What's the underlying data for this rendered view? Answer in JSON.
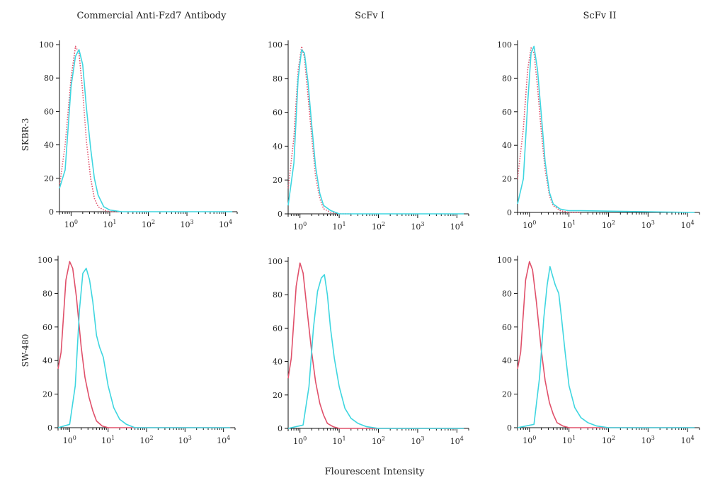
{
  "figure": {
    "column_titles": [
      "Commercial Anti-Fzd7 Antibody",
      "ScFv I",
      "ScFv II"
    ],
    "row_labels": [
      "SKBR-3",
      "SW-480"
    ],
    "xlabel": "Flourescent Intensity",
    "colors": {
      "control": "#e0506a",
      "sample": "#3fd6e0",
      "axis": "#111111"
    }
  },
  "chart_data": [
    {
      "type": "line",
      "row": "SKBR-3",
      "column": "Commercial Anti-Fzd7 Antibody",
      "x_scale": "log",
      "xlim": [
        0.5,
        20000
      ],
      "ylim": [
        0,
        100
      ],
      "x_ticks": [
        "10^0",
        "10^1",
        "10^2",
        "10^3",
        "10^4"
      ],
      "y_ticks": [
        0,
        20,
        40,
        60,
        80,
        100
      ],
      "series": [
        {
          "style": "dotted",
          "color": "#e0506a",
          "x": [
            0.5,
            0.7,
            1.0,
            1.3,
            1.6,
            2.0,
            2.5,
            3.2,
            4.0,
            5.0,
            7.0,
            10.0,
            20.0
          ],
          "y": [
            15,
            40,
            80,
            99,
            95,
            72,
            42,
            20,
            8,
            3,
            1,
            0,
            0
          ]
        },
        {
          "style": "solid",
          "color": "#3fd6e0",
          "x": [
            0.5,
            0.7,
            1.0,
            1.3,
            1.6,
            2.0,
            2.5,
            3.2,
            4.0,
            5.0,
            7.0,
            10.0,
            20.0,
            15000
          ],
          "y": [
            14,
            25,
            75,
            93,
            97,
            88,
            62,
            38,
            20,
            10,
            3,
            1,
            0,
            0
          ]
        }
      ]
    },
    {
      "type": "line",
      "row": "SKBR-3",
      "column": "ScFv I",
      "x_scale": "log",
      "xlim": [
        0.5,
        20000
      ],
      "ylim": [
        0,
        100
      ],
      "x_ticks": [
        "10^0",
        "10^1",
        "10^2",
        "10^3",
        "10^4"
      ],
      "y_ticks": [
        0,
        20,
        40,
        60,
        80,
        100
      ],
      "series": [
        {
          "style": "dotted",
          "color": "#e0506a",
          "x": [
            0.5,
            0.7,
            0.9,
            1.1,
            1.3,
            1.6,
            2.0,
            2.5,
            3.2,
            4.0,
            6.0,
            10.0,
            20.0
          ],
          "y": [
            15,
            45,
            85,
            99,
            92,
            70,
            45,
            22,
            9,
            3,
            1,
            0,
            0
          ]
        },
        {
          "style": "solid",
          "color": "#3fd6e0",
          "x": [
            0.5,
            0.7,
            0.9,
            1.1,
            1.3,
            1.6,
            2.0,
            2.5,
            3.2,
            4.0,
            6.0,
            10.0,
            20.0,
            15000
          ],
          "y": [
            5,
            30,
            80,
            97,
            95,
            78,
            52,
            28,
            12,
            5,
            2,
            0,
            0,
            0
          ]
        }
      ]
    },
    {
      "type": "line",
      "row": "SKBR-3",
      "column": "ScFv II",
      "x_scale": "log",
      "xlim": [
        0.5,
        20000
      ],
      "ylim": [
        0,
        100
      ],
      "x_ticks": [
        "10^0",
        "10^1",
        "10^2",
        "10^3",
        "10^4"
      ],
      "y_ticks": [
        0,
        20,
        40,
        60,
        80,
        100
      ],
      "series": [
        {
          "style": "dotted",
          "color": "#e0506a",
          "x": [
            0.5,
            0.7,
            0.9,
            1.1,
            1.3,
            1.6,
            2.0,
            2.5,
            3.2,
            4.0,
            6.0,
            10.0,
            20.0
          ],
          "y": [
            20,
            50,
            85,
            98,
            95,
            75,
            48,
            25,
            10,
            4,
            1,
            0,
            0
          ]
        },
        {
          "style": "solid",
          "color": "#3fd6e0",
          "x": [
            0.5,
            0.7,
            0.9,
            1.1,
            1.3,
            1.6,
            2.0,
            2.5,
            3.2,
            4.0,
            6.0,
            10.0,
            20.0,
            15000
          ],
          "y": [
            5,
            20,
            65,
            95,
            99,
            85,
            58,
            30,
            12,
            5,
            2,
            1,
            1,
            0
          ]
        }
      ]
    },
    {
      "type": "line",
      "row": "SW-480",
      "column": "Commercial Anti-Fzd7 Antibody",
      "x_scale": "log",
      "xlim": [
        0.5,
        20000
      ],
      "ylim": [
        0,
        100
      ],
      "x_ticks": [
        "10^0",
        "10^1",
        "10^2",
        "10^3",
        "10^4"
      ],
      "y_ticks": [
        0,
        20,
        40,
        60,
        80,
        100
      ],
      "series": [
        {
          "style": "solid",
          "color": "#e0506a",
          "x": [
            0.5,
            0.6,
            0.8,
            1.0,
            1.2,
            1.5,
            2.0,
            2.5,
            3.2,
            4.0,
            5.0,
            7.0,
            10.0,
            15000
          ],
          "y": [
            35,
            45,
            88,
            99,
            95,
            78,
            48,
            30,
            18,
            10,
            4,
            1,
            0,
            0
          ]
        },
        {
          "style": "solid",
          "color": "#3fd6e0",
          "x": [
            0.5,
            1.0,
            1.4,
            1.8,
            2.2,
            2.7,
            3.3,
            4.0,
            5.0,
            6.0,
            7.5,
            10.0,
            14.0,
            20.0,
            30.0,
            50.0,
            15000
          ],
          "y": [
            0,
            2,
            25,
            70,
            92,
            95,
            88,
            75,
            55,
            48,
            42,
            25,
            12,
            5,
            2,
            0,
            0
          ]
        }
      ]
    },
    {
      "type": "line",
      "row": "SW-480",
      "column": "ScFv I",
      "x_scale": "log",
      "xlim": [
        0.5,
        20000
      ],
      "ylim": [
        0,
        100
      ],
      "x_ticks": [
        "10^0",
        "10^1",
        "10^2",
        "10^3",
        "10^4"
      ],
      "y_ticks": [
        0,
        20,
        40,
        60,
        80,
        100
      ],
      "series": [
        {
          "style": "solid",
          "color": "#e0506a",
          "x": [
            0.5,
            0.6,
            0.8,
            1.0,
            1.2,
            1.5,
            2.0,
            2.5,
            3.2,
            4.0,
            5.0,
            7.0,
            10.0,
            15000
          ],
          "y": [
            30,
            42,
            85,
            99,
            93,
            72,
            45,
            28,
            15,
            8,
            3,
            1,
            0,
            0
          ]
        },
        {
          "style": "solid",
          "color": "#3fd6e0",
          "x": [
            0.5,
            1.2,
            1.7,
            2.2,
            2.8,
            3.5,
            4.2,
            5.0,
            6.0,
            7.5,
            10.0,
            14.0,
            20.0,
            30.0,
            50.0,
            100.0,
            15000
          ],
          "y": [
            0,
            2,
            25,
            60,
            82,
            90,
            92,
            80,
            60,
            42,
            25,
            12,
            6,
            3,
            1,
            0,
            0
          ]
        }
      ]
    },
    {
      "type": "line",
      "row": "SW-480",
      "column": "ScFv II",
      "x_scale": "log",
      "xlim": [
        0.5,
        20000
      ],
      "ylim": [
        0,
        100
      ],
      "x_ticks": [
        "10^0",
        "10^1",
        "10^2",
        "10^3",
        "10^4"
      ],
      "y_ticks": [
        0,
        20,
        40,
        60,
        80,
        100
      ],
      "series": [
        {
          "style": "solid",
          "color": "#e0506a",
          "x": [
            0.5,
            0.6,
            0.8,
            1.0,
            1.2,
            1.5,
            2.0,
            2.5,
            3.2,
            4.0,
            5.0,
            7.0,
            10.0,
            15000
          ],
          "y": [
            35,
            45,
            88,
            99,
            94,
            75,
            46,
            28,
            15,
            8,
            3,
            1,
            0,
            0
          ]
        },
        {
          "style": "solid",
          "color": "#3fd6e0",
          "x": [
            0.5,
            1.3,
            1.8,
            2.3,
            2.8,
            3.3,
            3.9,
            4.5,
            5.5,
            6.5,
            8.0,
            10.0,
            14.0,
            20.0,
            30.0,
            50.0,
            100.0,
            15000
          ],
          "y": [
            0,
            2,
            30,
            65,
            85,
            96,
            90,
            85,
            80,
            65,
            45,
            25,
            12,
            6,
            3,
            1,
            0,
            0
          ]
        }
      ]
    }
  ]
}
